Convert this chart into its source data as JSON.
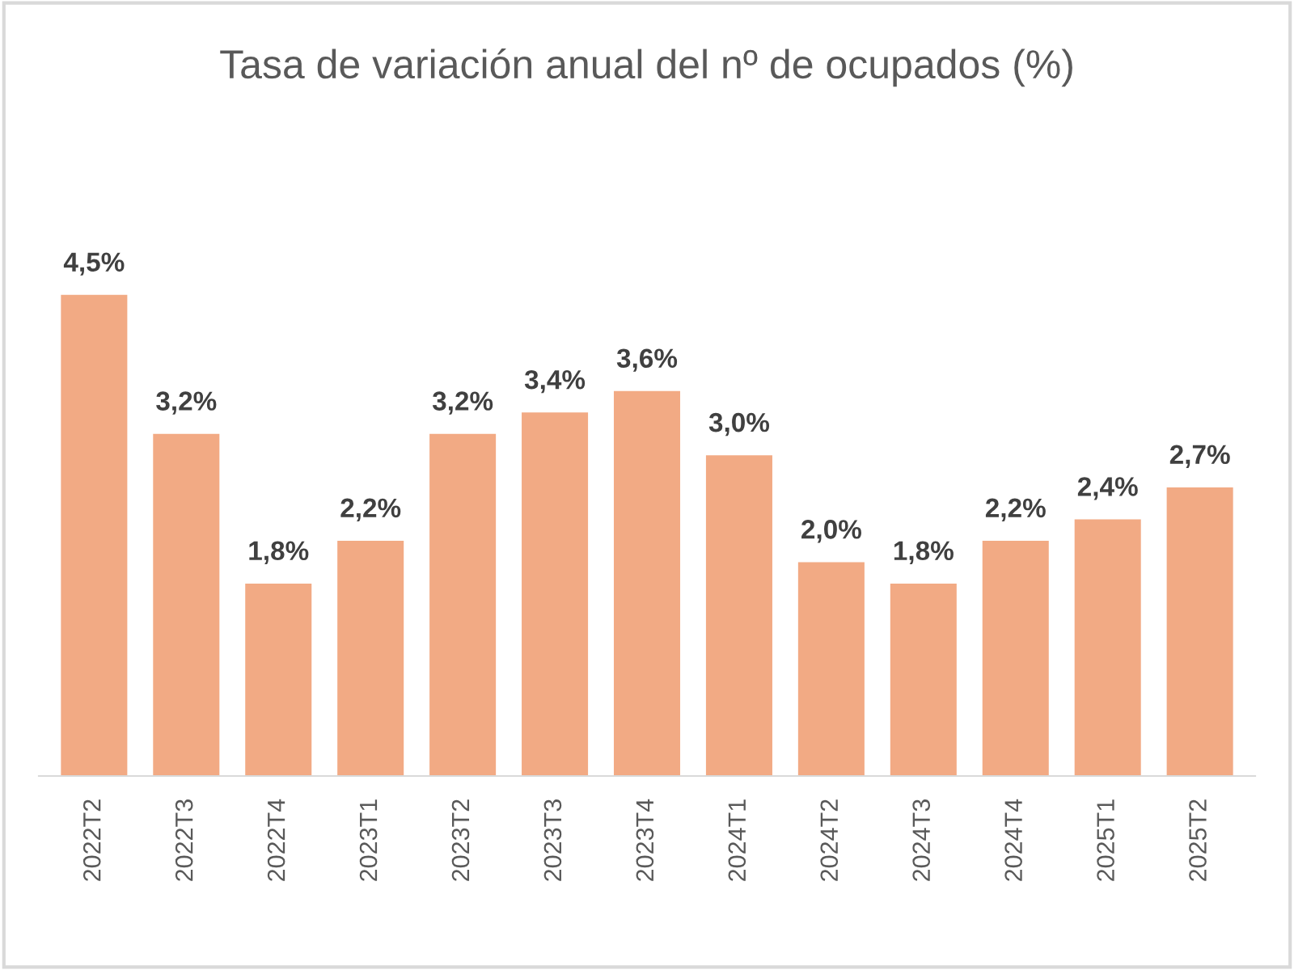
{
  "chart_data": {
    "type": "bar",
    "title": "Tasa de variación anual del nº de ocupados (%)",
    "categories": [
      "2022T2",
      "2022T3",
      "2022T4",
      "2023T1",
      "2023T2",
      "2023T3",
      "2023T4",
      "2024T1",
      "2024T2",
      "2024T3",
      "2024T4",
      "2025T1",
      "2025T2"
    ],
    "values": [
      4.5,
      3.2,
      1.8,
      2.2,
      3.2,
      3.4,
      3.6,
      3.0,
      2.0,
      1.8,
      2.2,
      2.4,
      2.7
    ],
    "value_labels": [
      "4,5%",
      "3,2%",
      "1,8%",
      "2,2%",
      "3,2%",
      "3,4%",
      "3,6%",
      "3,0%",
      "2,0%",
      "1,8%",
      "2,2%",
      "2,4%",
      "2,7%"
    ],
    "color": "#f2aa84",
    "grid": false,
    "legend": false
  }
}
